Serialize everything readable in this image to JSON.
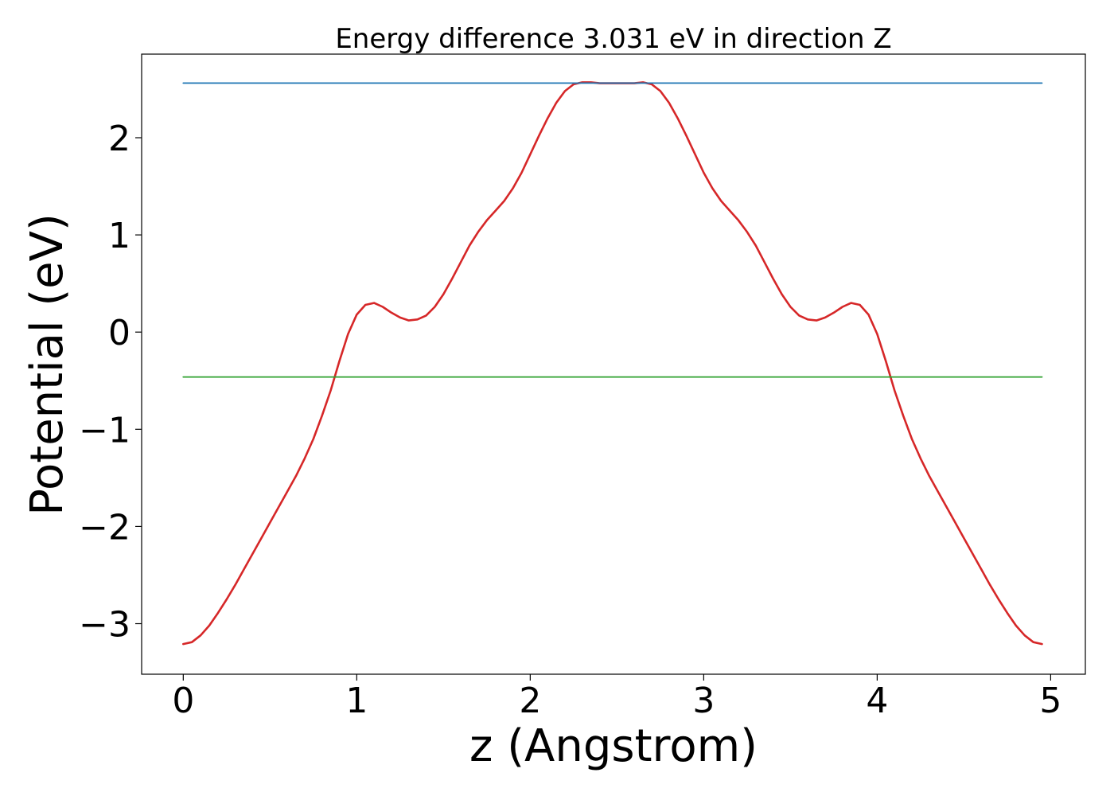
{
  "chart_data": {
    "type": "line",
    "title": "Energy difference 3.031 eV in direction Z",
    "xlabel": "z (Angstrom)",
    "ylabel": "Potential (eV)",
    "xlim": [
      -0.24,
      5.2
    ],
    "ylim": [
      -3.52,
      2.86
    ],
    "xticks": [
      0,
      1,
      2,
      3,
      4,
      5
    ],
    "yticks": [
      -3,
      -2,
      -1,
      0,
      1,
      2
    ],
    "ytick_labels": [
      "−3",
      "−2",
      "−1",
      "0",
      "1",
      "2"
    ],
    "xtick_labels": [
      "0",
      "1",
      "2",
      "3",
      "4",
      "5"
    ],
    "grid": false,
    "series": [
      {
        "color": "#d62728",
        "x": [
          0.0,
          0.05,
          0.1,
          0.15,
          0.2,
          0.25,
          0.3,
          0.35,
          0.4,
          0.45,
          0.5,
          0.55,
          0.6,
          0.65,
          0.7,
          0.75,
          0.8,
          0.85,
          0.9,
          0.95,
          1.0,
          1.05,
          1.1,
          1.15,
          1.2,
          1.25,
          1.3,
          1.35,
          1.4,
          1.45,
          1.5,
          1.55,
          1.6,
          1.65,
          1.7,
          1.75,
          1.8,
          1.85,
          1.9,
          1.95,
          2.0,
          2.05,
          2.1,
          2.15,
          2.2,
          2.25,
          2.3,
          2.35,
          2.4,
          2.45,
          2.5,
          2.55,
          2.6,
          2.65,
          2.7,
          2.75,
          2.8,
          2.85,
          2.9,
          2.95,
          3.0,
          3.05,
          3.1,
          3.15,
          3.2,
          3.25,
          3.3,
          3.35,
          3.4,
          3.45,
          3.5,
          3.55,
          3.6,
          3.65,
          3.7,
          3.75,
          3.8,
          3.85,
          3.9,
          3.95,
          4.0,
          4.05,
          4.1,
          4.15,
          4.2,
          4.25,
          4.3,
          4.35,
          4.4,
          4.45,
          4.5,
          4.55,
          4.6,
          4.65,
          4.7,
          4.75,
          4.8,
          4.85,
          4.9,
          4.95
        ],
        "y": [
          -3.21,
          -3.19,
          -3.12,
          -3.02,
          -2.89,
          -2.75,
          -2.6,
          -2.44,
          -2.28,
          -2.12,
          -1.96,
          -1.8,
          -1.64,
          -1.48,
          -1.3,
          -1.1,
          -0.86,
          -0.6,
          -0.3,
          -0.02,
          0.18,
          0.28,
          0.3,
          0.26,
          0.2,
          0.15,
          0.12,
          0.13,
          0.17,
          0.26,
          0.39,
          0.55,
          0.72,
          0.89,
          1.03,
          1.15,
          1.25,
          1.35,
          1.48,
          1.64,
          1.83,
          2.02,
          2.2,
          2.36,
          2.48,
          2.55,
          2.57,
          2.57,
          2.56,
          2.56,
          2.56,
          2.56,
          2.56,
          2.57,
          2.55,
          2.48,
          2.36,
          2.2,
          2.02,
          1.83,
          1.64,
          1.48,
          1.35,
          1.25,
          1.15,
          1.03,
          0.89,
          0.72,
          0.55,
          0.39,
          0.26,
          0.17,
          0.13,
          0.12,
          0.15,
          0.2,
          0.26,
          0.3,
          0.28,
          0.18,
          -0.02,
          -0.3,
          -0.6,
          -0.86,
          -1.1,
          -1.3,
          -1.48,
          -1.64,
          -1.8,
          -1.96,
          -2.12,
          -2.28,
          -2.44,
          -2.6,
          -2.75,
          -2.89,
          -3.02,
          -3.12,
          -3.19,
          -3.21
        ]
      },
      {
        "color": "#1f77b4",
        "x": [
          0.0,
          4.95
        ],
        "y": [
          2.562,
          2.562
        ]
      },
      {
        "color": "#2ca02c",
        "x": [
          0.0,
          4.95
        ],
        "y": [
          -0.462,
          -0.462
        ]
      }
    ]
  }
}
